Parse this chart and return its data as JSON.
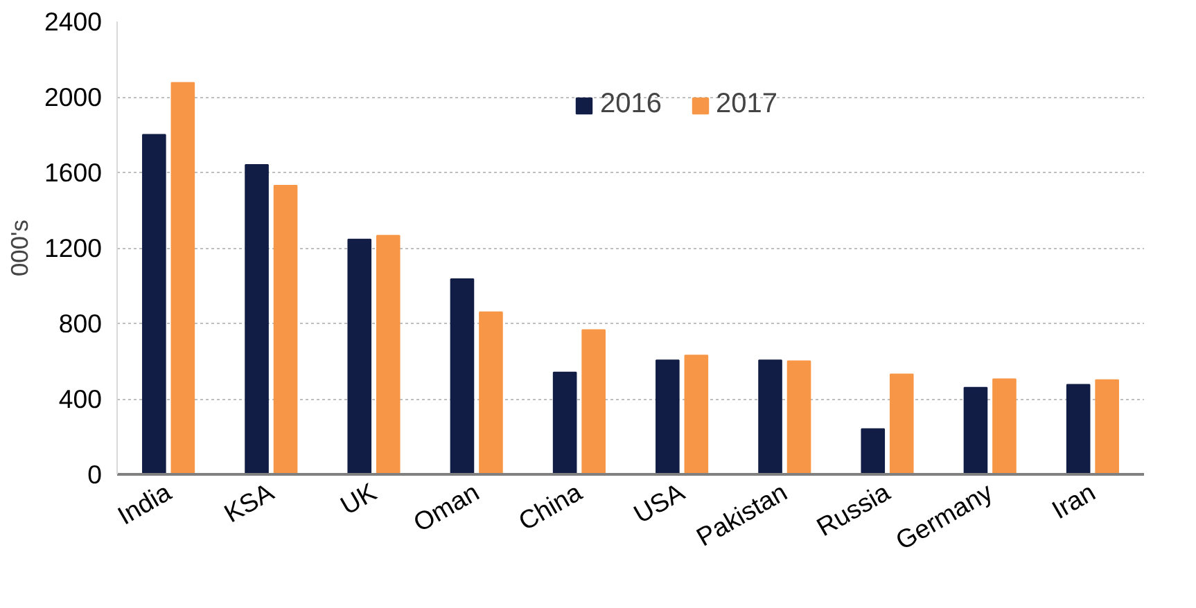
{
  "chart_data": {
    "type": "bar",
    "ylabel": "000's",
    "categories": [
      "India",
      "KSA",
      "UK",
      "Oman",
      "China",
      "USA",
      "Pakistan",
      "Russia",
      "Germany",
      "Iran"
    ],
    "series": [
      {
        "name": "2016",
        "color": "#111d45",
        "values": [
          1800,
          1640,
          1245,
          1035,
          540,
          605,
          605,
          240,
          460,
          475
        ]
      },
      {
        "name": "2017",
        "color": "#f79646",
        "values": [
          2075,
          1530,
          1265,
          860,
          765,
          630,
          600,
          530,
          505,
          500
        ]
      }
    ],
    "ylim": [
      0,
      2400
    ],
    "yticks": [
      0,
      400,
      800,
      1200,
      1600,
      2000,
      2400
    ],
    "grid": "y",
    "legend": "top"
  }
}
